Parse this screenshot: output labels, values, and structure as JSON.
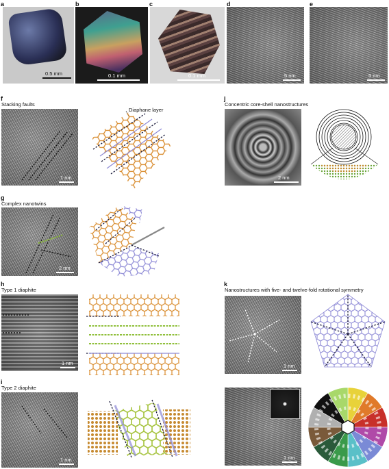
{
  "panels": {
    "a": {
      "label": "a",
      "scale": "0.5 mm"
    },
    "b": {
      "label": "b",
      "scale": "0.1 mm"
    },
    "c": {
      "label": "c",
      "scale": "0.1 mm"
    },
    "d": {
      "label": "d",
      "scale": "5 nm"
    },
    "e": {
      "label": "e",
      "scale": "5 nm"
    },
    "f": {
      "label": "f",
      "title": "Stacking faults",
      "scale": "1 nm",
      "annotation": "Diaphane layer"
    },
    "g": {
      "label": "g",
      "title": "Complex nanotwins",
      "scale": "2 nm"
    },
    "h": {
      "label": "h",
      "title": "Type 1 diaphite",
      "scale": "1 nm"
    },
    "i": {
      "label": "i",
      "title": "Type 2 diaphite",
      "scale": "1 nm"
    },
    "j": {
      "label": "j",
      "title": "Concentric core-shell nanostructures",
      "scale": "2 nm"
    },
    "k": {
      "label": "k",
      "title": "Nanostructures with five- and twelve-fold rotational symmetry",
      "scale1": "1 nm",
      "scale2": "1 nm"
    }
  },
  "colors": {
    "diamond": "#d88a2a",
    "graphene": "#8fbf3a",
    "lonsdaleite": "#8e8ad6",
    "dashed": "#1a1a3a"
  }
}
